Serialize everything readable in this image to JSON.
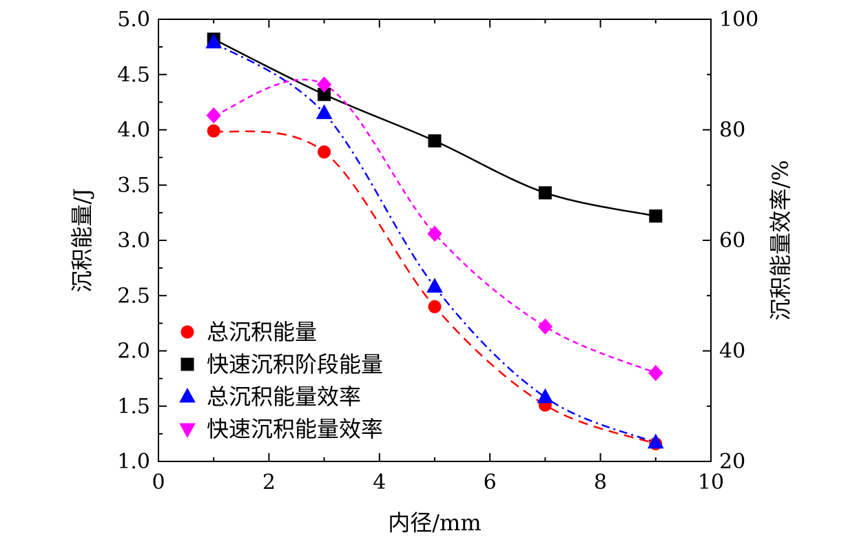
{
  "chart_data": {
    "type": "line",
    "xlabel": "内径/mm",
    "ylabel_left": "沉积能量/J",
    "ylabel_right": "沉积能量效率/%",
    "xlim": [
      0,
      10
    ],
    "ylim_left": [
      1.0,
      5.0
    ],
    "ylim_right": [
      20,
      100
    ],
    "x_ticks": [
      "0",
      "2",
      "4",
      "6",
      "8",
      "10"
    ],
    "y_left_ticks": [
      "1.0",
      "1.5",
      "2.0",
      "2.5",
      "3.0",
      "3.5",
      "4.0",
      "4.5",
      "5.0"
    ],
    "y_right_ticks": [
      "20",
      "40",
      "60",
      "80",
      "100"
    ],
    "grid": false,
    "legend_position": "bottom-left",
    "series": [
      {
        "name": "总沉积能量",
        "axis": "left",
        "marker": "circle",
        "line_style": "dashed",
        "color": "#ff0000",
        "x": [
          1,
          3,
          5,
          7,
          9
        ],
        "y": [
          3.99,
          3.8,
          2.4,
          1.51,
          1.16
        ]
      },
      {
        "name": "快速沉积阶段能量",
        "axis": "left",
        "marker": "square",
        "line_style": "solid",
        "color": "#000000",
        "x": [
          1,
          3,
          5,
          7,
          9
        ],
        "y": [
          4.82,
          4.32,
          3.9,
          3.43,
          3.22
        ]
      },
      {
        "name": "总沉积能量效率",
        "axis": "right",
        "marker": "triangle-up",
        "line_style": "dash-dot",
        "color": "#0000ff",
        "x": [
          1,
          3,
          5,
          7,
          9
        ],
        "y": [
          95.8,
          83.0,
          51.6,
          31.6,
          23.4
        ]
      },
      {
        "name": "快速沉积能量效率",
        "axis": "right",
        "marker": "diamond",
        "line_style": "short-dash",
        "color": "#ff00ff",
        "x": [
          1,
          3,
          5,
          7,
          9
        ],
        "y": [
          82.6,
          88.2,
          61.2,
          44.4,
          36.0
        ]
      }
    ]
  }
}
